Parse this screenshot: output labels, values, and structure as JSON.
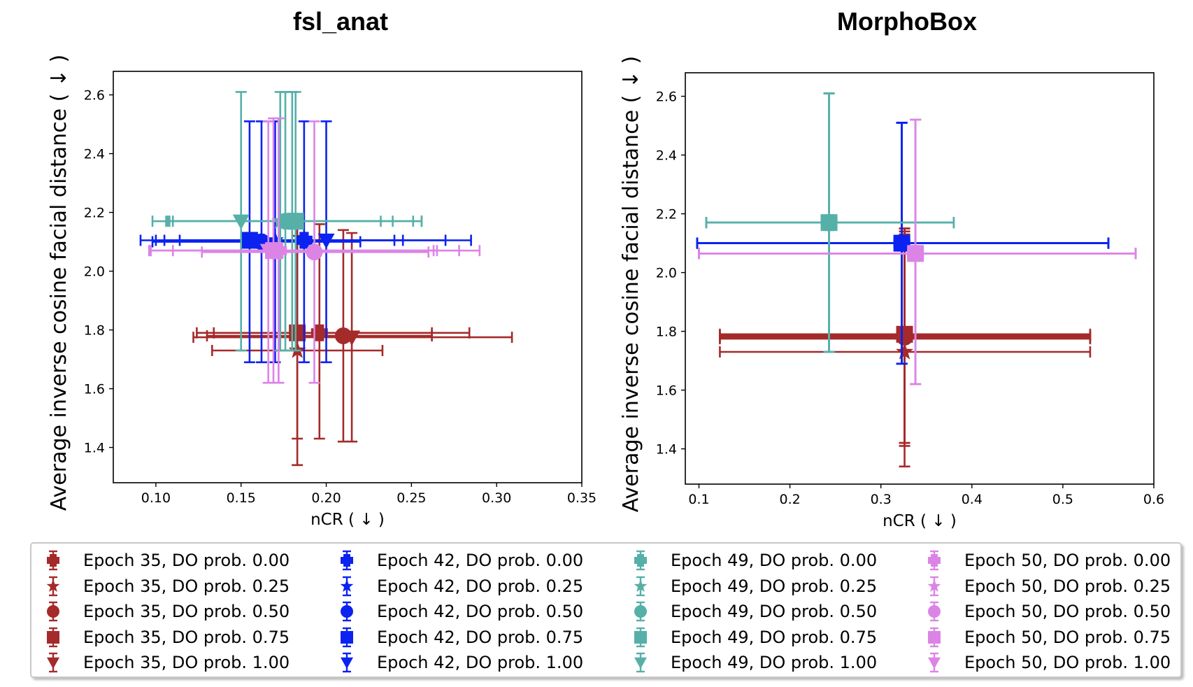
{
  "chart_data": [
    {
      "type": "scatter",
      "title": "fsl_anat",
      "xlabel": "nCR ( ↓ )",
      "ylabel": "Average inverse cosine facial distance ( ↓ )",
      "xlim": [
        0.075,
        0.35
      ],
      "ylim": [
        1.28,
        2.68
      ],
      "xticks": [
        "0.10",
        "0.15",
        "0.20",
        "0.25",
        "0.30",
        "0.35"
      ],
      "yticks": [
        "1.4",
        "1.6",
        "1.8",
        "2.0",
        "2.2",
        "2.4",
        "2.6"
      ],
      "series": [
        {
          "name": "Epoch 35, DO prob. 0.00",
          "color": "#a52a2a",
          "marker": "plus",
          "x": 0.196,
          "y": 1.79,
          "xerr": [
            0.134,
            0.284
          ],
          "yerr": [
            1.43,
            2.16
          ]
        },
        {
          "name": "Epoch 35, DO prob. 0.25",
          "color": "#a52a2a",
          "marker": "star",
          "x": 0.183,
          "y": 1.73,
          "xerr": [
            0.133,
            0.233
          ],
          "yerr": [
            1.34,
            2.12
          ]
        },
        {
          "name": "Epoch 35, DO prob. 0.50",
          "color": "#a52a2a",
          "marker": "circle",
          "x": 0.21,
          "y": 1.78,
          "xerr": [
            0.13,
            0.262
          ],
          "yerr": [
            1.42,
            2.14
          ]
        },
        {
          "name": "Epoch 35, DO prob. 0.75",
          "color": "#a52a2a",
          "marker": "square",
          "x": 0.183,
          "y": 1.79,
          "xerr": [
            0.124,
            0.262
          ],
          "yerr": [
            1.43,
            2.15
          ]
        },
        {
          "name": "Epoch 35, DO prob. 1.00",
          "color": "#a52a2a",
          "marker": "triangle-down",
          "x": 0.215,
          "y": 1.775,
          "xerr": [
            0.122,
            0.309
          ],
          "yerr": [
            1.42,
            2.13
          ]
        },
        {
          "name": "Epoch 42, DO prob. 0.00",
          "color": "#0b22f0",
          "marker": "plus",
          "x": 0.187,
          "y": 2.105,
          "xerr": [
            0.1,
            0.27
          ],
          "yerr": [
            1.69,
            2.51
          ]
        },
        {
          "name": "Epoch 42, DO prob. 0.25",
          "color": "#0b22f0",
          "marker": "star",
          "x": 0.17,
          "y": 2.105,
          "xerr": [
            0.105,
            0.245
          ],
          "yerr": [
            1.69,
            2.51
          ]
        },
        {
          "name": "Epoch 42, DO prob. 0.50",
          "color": "#0b22f0",
          "marker": "circle",
          "x": 0.162,
          "y": 2.1,
          "xerr": [
            0.098,
            0.22
          ],
          "yerr": [
            1.69,
            2.51
          ]
        },
        {
          "name": "Epoch 42, DO prob. 0.75",
          "color": "#0b22f0",
          "marker": "square",
          "x": 0.155,
          "y": 2.105,
          "xerr": [
            0.091,
            0.285
          ],
          "yerr": [
            1.69,
            2.51
          ]
        },
        {
          "name": "Epoch 42, DO prob. 1.00",
          "color": "#0b22f0",
          "marker": "triangle-down",
          "x": 0.2,
          "y": 2.105,
          "xerr": [
            0.114,
            0.24
          ],
          "yerr": [
            1.69,
            2.51
          ]
        },
        {
          "name": "Epoch 49, DO prob. 0.00",
          "color": "#56b0a8",
          "marker": "plus",
          "x": 0.18,
          "y": 2.17,
          "xerr": [
            0.108,
            0.256
          ],
          "yerr": [
            1.73,
            2.61
          ]
        },
        {
          "name": "Epoch 49, DO prob. 0.25",
          "color": "#56b0a8",
          "marker": "star",
          "x": 0.173,
          "y": 2.17,
          "xerr": [
            0.106,
            0.232
          ],
          "yerr": [
            1.73,
            2.61
          ]
        },
        {
          "name": "Epoch 49, DO prob. 0.50",
          "color": "#56b0a8",
          "marker": "circle",
          "x": 0.176,
          "y": 2.17,
          "xerr": [
            0.11,
            0.239
          ],
          "yerr": [
            1.73,
            2.61
          ]
        },
        {
          "name": "Epoch 49, DO prob. 0.75",
          "color": "#56b0a8",
          "marker": "square",
          "x": 0.182,
          "y": 2.17,
          "xerr": [
            0.107,
            0.251
          ],
          "yerr": [
            1.73,
            2.61
          ]
        },
        {
          "name": "Epoch 49, DO prob. 1.00",
          "color": "#56b0a8",
          "marker": "triangle-down",
          "x": 0.15,
          "y": 2.17,
          "xerr": [
            0.098,
            0.256
          ],
          "yerr": [
            1.73,
            2.61
          ]
        },
        {
          "name": "Epoch 50, DO prob. 0.00",
          "color": "#dc84e6",
          "marker": "plus",
          "x": 0.172,
          "y": 2.07,
          "xerr": [
            0.097,
            0.278
          ],
          "yerr": [
            1.62,
            2.52
          ]
        },
        {
          "name": "Epoch 50, DO prob. 0.25",
          "color": "#dc84e6",
          "marker": "star",
          "x": 0.172,
          "y": 2.07,
          "xerr": [
            0.11,
            0.265
          ],
          "yerr": [
            1.62,
            2.52
          ]
        },
        {
          "name": "Epoch 50, DO prob. 0.50",
          "color": "#dc84e6",
          "marker": "circle",
          "x": 0.193,
          "y": 2.065,
          "xerr": [
            0.127,
            0.26
          ],
          "yerr": [
            1.62,
            2.51
          ]
        },
        {
          "name": "Epoch 50, DO prob. 0.75",
          "color": "#dc84e6",
          "marker": "square",
          "x": 0.169,
          "y": 2.07,
          "xerr": [
            0.096,
            0.29
          ],
          "yerr": [
            1.62,
            2.52
          ]
        },
        {
          "name": "Epoch 50, DO prob. 1.00",
          "color": "#dc84e6",
          "marker": "triangle-down",
          "x": 0.166,
          "y": 2.07,
          "xerr": [
            0.097,
            0.263
          ],
          "yerr": [
            1.62,
            2.51
          ]
        }
      ]
    },
    {
      "type": "scatter",
      "title": "MorphoBox",
      "xlabel": "nCR ( ↓ )",
      "ylabel": "Average inverse cosine facial distance ( ↓ )",
      "xlim": [
        0.085,
        0.6
      ],
      "ylim": [
        1.28,
        2.68
      ],
      "xticks": [
        "0.1",
        "0.2",
        "0.3",
        "0.4",
        "0.5",
        "0.6"
      ],
      "yticks": [
        "1.4",
        "1.6",
        "1.8",
        "2.0",
        "2.2",
        "2.4",
        "2.6"
      ],
      "series": [
        {
          "name": "Epoch 35, DO prob. 0.00",
          "color": "#a52a2a",
          "marker": "plus",
          "x": 0.326,
          "y": 1.785,
          "xerr": [
            0.123,
            0.53
          ],
          "yerr": [
            1.42,
            2.15
          ]
        },
        {
          "name": "Epoch 35, DO prob. 0.25",
          "color": "#a52a2a",
          "marker": "star",
          "x": 0.326,
          "y": 1.73,
          "xerr": [
            0.123,
            0.53
          ],
          "yerr": [
            1.34,
            2.12
          ]
        },
        {
          "name": "Epoch 35, DO prob. 0.50",
          "color": "#a52a2a",
          "marker": "circle",
          "x": 0.326,
          "y": 1.78,
          "xerr": [
            0.123,
            0.53
          ],
          "yerr": [
            1.42,
            2.14
          ]
        },
        {
          "name": "Epoch 35, DO prob. 0.75",
          "color": "#a52a2a",
          "marker": "square",
          "x": 0.326,
          "y": 1.79,
          "xerr": [
            0.123,
            0.53
          ],
          "yerr": [
            1.42,
            2.15
          ]
        },
        {
          "name": "Epoch 35, DO prob. 1.00",
          "color": "#a52a2a",
          "marker": "triangle-down",
          "x": 0.326,
          "y": 1.775,
          "xerr": [
            0.123,
            0.53
          ],
          "yerr": [
            1.41,
            2.13
          ]
        },
        {
          "name": "Epoch 42, DO prob. 0.00",
          "color": "#0b22f0",
          "marker": "plus",
          "x": 0.323,
          "y": 2.1,
          "xerr": [
            0.098,
            0.55
          ],
          "yerr": [
            1.69,
            2.51
          ]
        },
        {
          "name": "Epoch 42, DO prob. 0.25",
          "color": "#0b22f0",
          "marker": "star",
          "x": 0.323,
          "y": 2.1,
          "xerr": [
            0.098,
            0.55
          ],
          "yerr": [
            1.69,
            2.51
          ]
        },
        {
          "name": "Epoch 42, DO prob. 0.50",
          "color": "#0b22f0",
          "marker": "circle",
          "x": 0.323,
          "y": 2.1,
          "xerr": [
            0.098,
            0.55
          ],
          "yerr": [
            1.69,
            2.51
          ]
        },
        {
          "name": "Epoch 42, DO prob. 0.75",
          "color": "#0b22f0",
          "marker": "square",
          "x": 0.323,
          "y": 2.1,
          "xerr": [
            0.098,
            0.55
          ],
          "yerr": [
            1.69,
            2.51
          ]
        },
        {
          "name": "Epoch 42, DO prob. 1.00",
          "color": "#0b22f0",
          "marker": "triangle-down",
          "x": 0.323,
          "y": 2.1,
          "xerr": [
            0.098,
            0.55
          ],
          "yerr": [
            1.69,
            2.51
          ]
        },
        {
          "name": "Epoch 49, DO prob. 0.00",
          "color": "#56b0a8",
          "marker": "plus",
          "x": 0.243,
          "y": 2.17,
          "xerr": [
            0.108,
            0.38
          ],
          "yerr": [
            1.73,
            2.61
          ]
        },
        {
          "name": "Epoch 49, DO prob. 0.25",
          "color": "#56b0a8",
          "marker": "star",
          "x": 0.243,
          "y": 2.17,
          "xerr": [
            0.108,
            0.38
          ],
          "yerr": [
            1.73,
            2.61
          ]
        },
        {
          "name": "Epoch 49, DO prob. 0.50",
          "color": "#56b0a8",
          "marker": "circle",
          "x": 0.243,
          "y": 2.17,
          "xerr": [
            0.108,
            0.38
          ],
          "yerr": [
            1.73,
            2.61
          ]
        },
        {
          "name": "Epoch 49, DO prob. 0.75",
          "color": "#56b0a8",
          "marker": "square",
          "x": 0.243,
          "y": 2.17,
          "xerr": [
            0.108,
            0.38
          ],
          "yerr": [
            1.73,
            2.61
          ]
        },
        {
          "name": "Epoch 49, DO prob. 1.00",
          "color": "#56b0a8",
          "marker": "triangle-down",
          "x": 0.243,
          "y": 2.17,
          "xerr": [
            0.108,
            0.38
          ],
          "yerr": [
            1.73,
            2.61
          ]
        },
        {
          "name": "Epoch 50, DO prob. 0.00",
          "color": "#dc84e6",
          "marker": "plus",
          "x": 0.338,
          "y": 2.065,
          "xerr": [
            0.1,
            0.58
          ],
          "yerr": [
            1.62,
            2.52
          ]
        },
        {
          "name": "Epoch 50, DO prob. 0.25",
          "color": "#dc84e6",
          "marker": "star",
          "x": 0.338,
          "y": 2.065,
          "xerr": [
            0.1,
            0.58
          ],
          "yerr": [
            1.62,
            2.52
          ]
        },
        {
          "name": "Epoch 50, DO prob. 0.50",
          "color": "#dc84e6",
          "marker": "circle",
          "x": 0.338,
          "y": 2.065,
          "xerr": [
            0.1,
            0.58
          ],
          "yerr": [
            1.62,
            2.52
          ]
        },
        {
          "name": "Epoch 50, DO prob. 0.75",
          "color": "#dc84e6",
          "marker": "square",
          "x": 0.338,
          "y": 2.065,
          "xerr": [
            0.1,
            0.58
          ],
          "yerr": [
            1.62,
            2.52
          ]
        },
        {
          "name": "Epoch 50, DO prob. 1.00",
          "color": "#dc84e6",
          "marker": "triangle-down",
          "x": 0.338,
          "y": 2.065,
          "xerr": [
            0.1,
            0.58
          ],
          "yerr": [
            1.62,
            2.52
          ]
        }
      ]
    }
  ],
  "legend": {
    "location": "bottom",
    "entries": [
      {
        "label": "Epoch 35, DO prob. 0.00",
        "color": "#a52a2a",
        "marker": "plus"
      },
      {
        "label": "Epoch 35, DO prob. 0.25",
        "color": "#a52a2a",
        "marker": "star"
      },
      {
        "label": "Epoch 35, DO prob. 0.50",
        "color": "#a52a2a",
        "marker": "circle"
      },
      {
        "label": "Epoch 35, DO prob. 0.75",
        "color": "#a52a2a",
        "marker": "square"
      },
      {
        "label": "Epoch 35, DO prob. 1.00",
        "color": "#a52a2a",
        "marker": "triangle-down"
      },
      {
        "label": "Epoch 42, DO prob. 0.00",
        "color": "#0b22f0",
        "marker": "plus"
      },
      {
        "label": "Epoch 42, DO prob. 0.25",
        "color": "#0b22f0",
        "marker": "star"
      },
      {
        "label": "Epoch 42, DO prob. 0.50",
        "color": "#0b22f0",
        "marker": "circle"
      },
      {
        "label": "Epoch 42, DO prob. 0.75",
        "color": "#0b22f0",
        "marker": "square"
      },
      {
        "label": "Epoch 42, DO prob. 1.00",
        "color": "#0b22f0",
        "marker": "triangle-down"
      },
      {
        "label": "Epoch 49, DO prob. 0.00",
        "color": "#56b0a8",
        "marker": "plus"
      },
      {
        "label": "Epoch 49, DO prob. 0.25",
        "color": "#56b0a8",
        "marker": "star"
      },
      {
        "label": "Epoch 49, DO prob. 0.50",
        "color": "#56b0a8",
        "marker": "circle"
      },
      {
        "label": "Epoch 49, DO prob. 0.75",
        "color": "#56b0a8",
        "marker": "square"
      },
      {
        "label": "Epoch 49, DO prob. 1.00",
        "color": "#56b0a8",
        "marker": "triangle-down"
      },
      {
        "label": "Epoch 50, DO prob. 0.00",
        "color": "#dc84e6",
        "marker": "plus"
      },
      {
        "label": "Epoch 50, DO prob. 0.25",
        "color": "#dc84e6",
        "marker": "star"
      },
      {
        "label": "Epoch 50, DO prob. 0.50",
        "color": "#dc84e6",
        "marker": "circle"
      },
      {
        "label": "Epoch 50, DO prob. 0.75",
        "color": "#dc84e6",
        "marker": "square"
      },
      {
        "label": "Epoch 50, DO prob. 1.00",
        "color": "#dc84e6",
        "marker": "triangle-down"
      }
    ]
  }
}
